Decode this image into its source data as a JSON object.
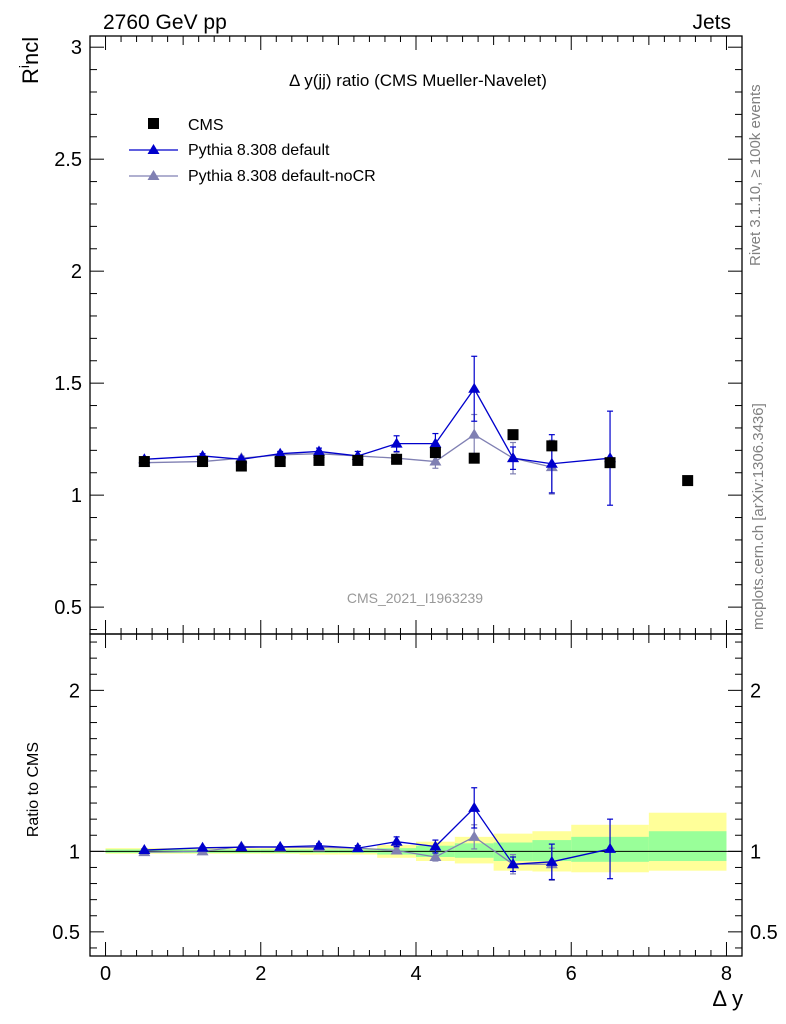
{
  "header": {
    "left": "2760 GeV pp",
    "right": "Jets"
  },
  "side": {
    "rivet": "Rivet 3.1.10, ≥ 100k events",
    "mcplots": "mcplots.cern.ch [arXiv:1306.3436]"
  },
  "colors": {
    "cms": "#000000",
    "default": "#0000cc",
    "nocr": "#8080b3",
    "band_outer": "#ffff99",
    "band_inner": "#99ff99"
  },
  "chart_data": [
    {
      "type": "scatter",
      "panel": "main",
      "title": "Δ y(jj) ratio (CMS Mueller-Navelet)",
      "ylabel_main": "R",
      "ylabel_sup": "i",
      "ylabel_rest": "ncl",
      "watermark": "CMS_2021_I1963239",
      "xlim": [
        -0.2,
        8.2
      ],
      "ylim": [
        0.38,
        3.05
      ],
      "yticks": [
        0.5,
        1,
        1.5,
        2,
        2.5,
        3
      ],
      "ytick_labels": [
        "0.5",
        "1",
        "1.5",
        "2",
        "2.5",
        "3"
      ],
      "legend_position": "top-left",
      "series": [
        {
          "name": "CMS",
          "marker": "square",
          "x": [
            0.5,
            1.25,
            1.75,
            2.25,
            2.75,
            3.25,
            3.75,
            4.25,
            4.75,
            5.25,
            5.75,
            6.5,
            7.5
          ],
          "y": [
            1.15,
            1.15,
            1.13,
            1.15,
            1.155,
            1.155,
            1.16,
            1.19,
            1.165,
            1.27,
            1.22,
            1.145,
            1.065
          ]
        },
        {
          "name": "Pythia 8.308 default",
          "marker": "triangle",
          "x": [
            0.5,
            1.25,
            1.75,
            2.25,
            2.75,
            3.25,
            3.75,
            4.25,
            4.75,
            5.25,
            5.75,
            6.5
          ],
          "y": [
            1.16,
            1.175,
            1.16,
            1.185,
            1.195,
            1.175,
            1.23,
            1.23,
            1.475,
            1.165,
            1.14,
            1.165
          ],
          "err": [
            0.01,
            0.01,
            0.01,
            0.01,
            0.015,
            0.02,
            0.035,
            0.045,
            0.145,
            0.05,
            0.13,
            0.21
          ]
        },
        {
          "name": "Pythia 8.308 default-noCR",
          "marker": "triangle",
          "x": [
            0.5,
            1.25,
            1.75,
            2.25,
            2.75,
            3.25,
            3.75,
            4.25,
            4.75,
            5.25,
            5.75
          ],
          "y": [
            1.145,
            1.15,
            1.165,
            1.18,
            1.185,
            1.175,
            1.165,
            1.15,
            1.27,
            1.165,
            1.125
          ],
          "err": [
            0.01,
            0.01,
            0.01,
            0.01,
            0.015,
            0.02,
            0.025,
            0.03,
            0.09,
            0.07,
            0.12
          ]
        }
      ]
    },
    {
      "type": "scatter",
      "panel": "ratio",
      "ylabel": "Ratio to CMS",
      "xlabel": "Δ y",
      "xlim": [
        -0.2,
        8.2
      ],
      "ylim": [
        0.35,
        2.35
      ],
      "xticks": [
        0,
        2,
        4,
        6,
        8
      ],
      "xtick_labels": [
        "0",
        "2",
        "4",
        "6",
        "8"
      ],
      "yticks": [
        0.5,
        1,
        2
      ],
      "ytick_labels": [
        "0.5",
        "1",
        "2"
      ],
      "bands": [
        {
          "x0": 0.0,
          "x1": 1.0,
          "outer": [
            0.985,
            1.02
          ],
          "inner": [
            0.99,
            1.012
          ]
        },
        {
          "x0": 1.0,
          "x1": 1.5,
          "outer": [
            0.985,
            1.02
          ],
          "inner": [
            0.99,
            1.012
          ]
        },
        {
          "x0": 1.5,
          "x1": 2.0,
          "outer": [
            0.985,
            1.02
          ],
          "inner": [
            0.99,
            1.012
          ]
        },
        {
          "x0": 2.0,
          "x1": 2.5,
          "outer": [
            0.985,
            1.02
          ],
          "inner": [
            0.99,
            1.012
          ]
        },
        {
          "x0": 2.5,
          "x1": 3.0,
          "outer": [
            0.98,
            1.02
          ],
          "inner": [
            0.99,
            1.012
          ]
        },
        {
          "x0": 3.0,
          "x1": 3.5,
          "outer": [
            0.98,
            1.02
          ],
          "inner": [
            0.99,
            1.012
          ]
        },
        {
          "x0": 3.5,
          "x1": 4.0,
          "outer": [
            0.96,
            1.04
          ],
          "inner": [
            0.98,
            1.02
          ]
        },
        {
          "x0": 4.0,
          "x1": 4.5,
          "outer": [
            0.94,
            1.06
          ],
          "inner": [
            0.965,
            1.035
          ]
        },
        {
          "x0": 4.5,
          "x1": 5.0,
          "outer": [
            0.925,
            1.09
          ],
          "inner": [
            0.96,
            1.05
          ]
        },
        {
          "x0": 5.0,
          "x1": 5.5,
          "outer": [
            0.88,
            1.11
          ],
          "inner": [
            0.94,
            1.055
          ]
        },
        {
          "x0": 5.5,
          "x1": 6.0,
          "outer": [
            0.875,
            1.125
          ],
          "inner": [
            0.94,
            1.07
          ]
        },
        {
          "x0": 6.0,
          "x1": 7.0,
          "outer": [
            0.87,
            1.165
          ],
          "inner": [
            0.935,
            1.09
          ]
        },
        {
          "x0": 7.0,
          "x1": 8.0,
          "outer": [
            0.88,
            1.24
          ],
          "inner": [
            0.94,
            1.125
          ]
        }
      ],
      "series": [
        {
          "name": "Pythia 8.308 default",
          "x": [
            0.5,
            1.25,
            1.75,
            2.25,
            2.75,
            3.25,
            3.75,
            4.25,
            4.75,
            5.25,
            5.75,
            6.5
          ],
          "y": [
            1.008,
            1.022,
            1.026,
            1.028,
            1.035,
            1.02,
            1.06,
            1.03,
            1.27,
            0.92,
            0.935,
            1.015
          ],
          "err": [
            0.008,
            0.008,
            0.008,
            0.008,
            0.012,
            0.015,
            0.03,
            0.04,
            0.125,
            0.045,
            0.11,
            0.185
          ]
        },
        {
          "name": "Pythia 8.308 default-noCR",
          "x": [
            0.5,
            1.25,
            1.75,
            2.25,
            2.75,
            3.25,
            3.75,
            4.25,
            4.75,
            5.25,
            5.75
          ],
          "y": [
            0.995,
            1.0,
            1.03,
            1.025,
            1.025,
            1.02,
            1.005,
            0.965,
            1.09,
            0.92,
            0.92
          ],
          "err": [
            0.008,
            0.008,
            0.008,
            0.008,
            0.012,
            0.015,
            0.02,
            0.025,
            0.075,
            0.06,
            0.1
          ]
        }
      ]
    }
  ]
}
